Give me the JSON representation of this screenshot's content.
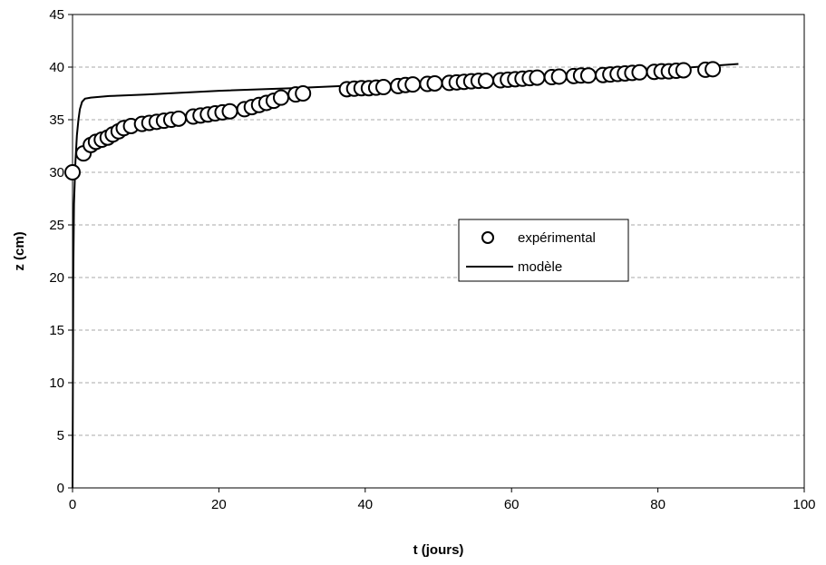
{
  "chart_data": {
    "type": "scatter",
    "title": "",
    "xlabel": "t (jours)",
    "ylabel": "z (cm)",
    "xlim": [
      0,
      100
    ],
    "ylim": [
      0,
      45
    ],
    "xticks": [
      0,
      20,
      40,
      60,
      80,
      100
    ],
    "yticks": [
      0,
      5,
      10,
      15,
      20,
      25,
      30,
      35,
      40,
      45
    ],
    "grid": "horizontal dashed",
    "legend": {
      "position": "center-right",
      "entries": [
        "expérimental",
        "modèle"
      ]
    },
    "series": [
      {
        "name": "expérimental",
        "marker": "open-circle",
        "points": [
          [
            0,
            30
          ],
          [
            1.5,
            31.8
          ],
          [
            2.5,
            32.6
          ],
          [
            3.2,
            32.9
          ],
          [
            4,
            33.1
          ],
          [
            4.8,
            33.3
          ],
          [
            5.5,
            33.6
          ],
          [
            6.3,
            33.9
          ],
          [
            7,
            34.2
          ],
          [
            8,
            34.4
          ],
          [
            9.5,
            34.6
          ],
          [
            10.5,
            34.7
          ],
          [
            11.5,
            34.8
          ],
          [
            12.5,
            34.9
          ],
          [
            13.5,
            35.0
          ],
          [
            14.5,
            35.1
          ],
          [
            16.5,
            35.3
          ],
          [
            17.5,
            35.4
          ],
          [
            18.5,
            35.5
          ],
          [
            19.5,
            35.6
          ],
          [
            20.5,
            35.7
          ],
          [
            21.5,
            35.8
          ],
          [
            23.5,
            36.0
          ],
          [
            24.5,
            36.2
          ],
          [
            25.5,
            36.4
          ],
          [
            26.5,
            36.6
          ],
          [
            27.5,
            36.8
          ],
          [
            28.5,
            37.1
          ],
          [
            30.5,
            37.4
          ],
          [
            31.5,
            37.5
          ],
          [
            37.5,
            37.9
          ],
          [
            38.5,
            37.95
          ],
          [
            39.5,
            38.0
          ],
          [
            40.5,
            38.0
          ],
          [
            41.5,
            38.05
          ],
          [
            42.5,
            38.1
          ],
          [
            44.5,
            38.2
          ],
          [
            45.5,
            38.3
          ],
          [
            46.5,
            38.35
          ],
          [
            48.5,
            38.4
          ],
          [
            49.5,
            38.45
          ],
          [
            51.5,
            38.5
          ],
          [
            52.5,
            38.55
          ],
          [
            53.5,
            38.6
          ],
          [
            54.5,
            38.65
          ],
          [
            55.5,
            38.7
          ],
          [
            56.5,
            38.7
          ],
          [
            58.5,
            38.75
          ],
          [
            59.5,
            38.8
          ],
          [
            60.5,
            38.85
          ],
          [
            61.5,
            38.9
          ],
          [
            62.5,
            38.95
          ],
          [
            63.5,
            39.0
          ],
          [
            65.5,
            39.05
          ],
          [
            66.5,
            39.1
          ],
          [
            68.5,
            39.15
          ],
          [
            69.5,
            39.2
          ],
          [
            70.5,
            39.2
          ],
          [
            72.5,
            39.25
          ],
          [
            73.5,
            39.3
          ],
          [
            74.5,
            39.35
          ],
          [
            75.5,
            39.4
          ],
          [
            76.5,
            39.45
          ],
          [
            77.5,
            39.5
          ],
          [
            79.5,
            39.55
          ],
          [
            80.5,
            39.6
          ],
          [
            81.5,
            39.6
          ],
          [
            82.5,
            39.65
          ],
          [
            83.5,
            39.7
          ],
          [
            86.5,
            39.75
          ],
          [
            87.5,
            39.8
          ]
        ]
      },
      {
        "name": "modèle",
        "line": "solid",
        "points": [
          [
            0,
            0
          ],
          [
            0.05,
            10
          ],
          [
            0.1,
            20
          ],
          [
            0.2,
            27
          ],
          [
            0.4,
            31
          ],
          [
            0.6,
            33.5
          ],
          [
            0.8,
            35
          ],
          [
            1.0,
            36
          ],
          [
            1.3,
            36.7
          ],
          [
            1.7,
            37.0
          ],
          [
            2.5,
            37.1
          ],
          [
            5,
            37.25
          ],
          [
            10,
            37.4
          ],
          [
            20,
            37.75
          ],
          [
            30,
            38.0
          ],
          [
            40,
            38.3
          ],
          [
            50,
            38.6
          ],
          [
            60,
            38.9
          ],
          [
            70,
            39.3
          ],
          [
            80,
            39.75
          ],
          [
            91,
            40.3
          ]
        ]
      }
    ]
  }
}
